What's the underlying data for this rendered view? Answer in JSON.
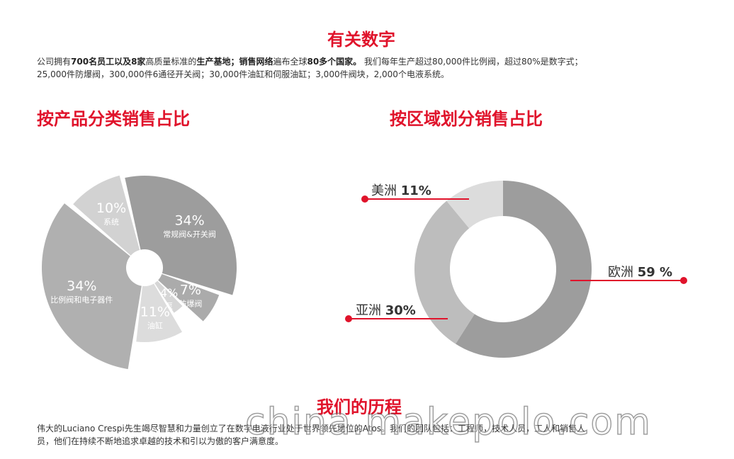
{
  "section_title": "有关数字",
  "intro": {
    "p1": "公司拥有",
    "b1": "700名员工以及8家",
    "p2": "高质量标准的",
    "b2": "生产基地；销售网络",
    "p3": "遍布全球",
    "b3": "80多个国家。",
    "p4": " 我们每年生产超过80,000件比例阀，超过80%是数字式；",
    "line2": "25,000件防爆阀，300,000件6通径开关阀；30,000件油缸和伺服油缸；3,000件阀块，2,000个电液系统。"
  },
  "history_title": "我们的历程",
  "history": {
    "line1": "伟大的Luciano Crespi先生竭尽智慧和力量创立了在数字电液行业处于世界领先地位的Atos。我们的团队包括：工程师，技术人员，工人和销售人",
    "line2": "员，他们在持续不断地追求卓越的技术和引以为傲的客户满意度。"
  },
  "watermark": "china.makepolo.com",
  "chart_data": [
    {
      "type": "pie",
      "title": "按产品分类销售占比",
      "categories": [
        "常规阀&开关阀",
        "防爆阀",
        "泵",
        "油缸",
        "比例阀和电子器件",
        "系统"
      ],
      "values": [
        34,
        7,
        4,
        11,
        34,
        10
      ],
      "value_labels": [
        "34%",
        "7%",
        "4%",
        "11%",
        "34%",
        "10%"
      ],
      "colors": [
        "#9d9d9d",
        "#ababab",
        "#d6d6d6",
        "#dcdcdc",
        "#b0b0b0",
        "#d2d2d2"
      ]
    },
    {
      "type": "pie",
      "title": "按区域划分销售占比",
      "categories": [
        "欧洲",
        "亚洲",
        "美洲"
      ],
      "values": [
        59,
        30,
        11
      ],
      "value_labels": [
        "59 %",
        "30%",
        "11%"
      ],
      "colors": [
        "#9d9d9d",
        "#bdbdbd",
        "#dcdcdc"
      ],
      "accent": "#e0132b"
    }
  ]
}
